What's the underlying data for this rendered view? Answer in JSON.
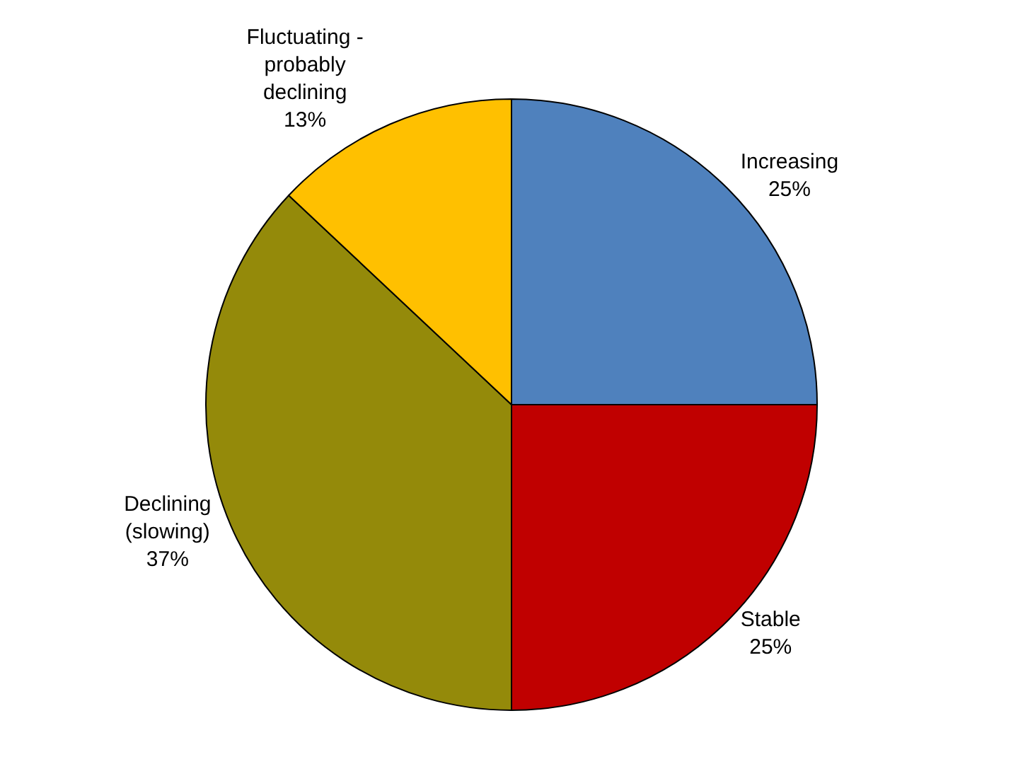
{
  "chart_data": {
    "type": "pie",
    "categories": [
      "Increasing",
      "Stable",
      "Declining (slowing)",
      "Fluctuating - probably declining"
    ],
    "values": [
      25,
      25,
      37,
      13
    ],
    "colors": [
      "#4f81bd",
      "#c00000",
      "#948a0a",
      "#ffc000"
    ],
    "value_labels": [
      "25%",
      "25%",
      "37%",
      "13%"
    ],
    "legend": false
  }
}
